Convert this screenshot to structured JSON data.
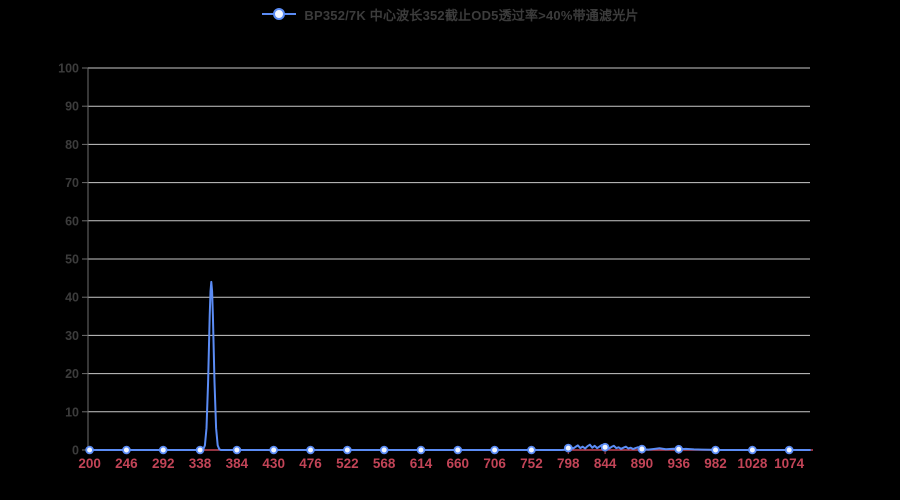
{
  "page": {
    "background": "#000000"
  },
  "legend": {
    "label": "BP352/7K 中心波长352截止OD5透过率>40%带通滤光片",
    "text_color": "#3c3c3c",
    "marker_color": "#5b8cf5",
    "marker_fill": "#f2f6ff"
  },
  "chart_data": {
    "type": "line",
    "title": "",
    "xlabel": "",
    "ylabel": "",
    "legend_position": "top-center",
    "grid": true,
    "xlim": [
      198,
      1100
    ],
    "ylim": [
      0,
      100
    ],
    "x_ticks": [
      200,
      246,
      292,
      338,
      384,
      430,
      476,
      522,
      568,
      614,
      660,
      706,
      752,
      798,
      844,
      890,
      936,
      982,
      1028,
      1074
    ],
    "y_ticks": [
      0,
      10,
      20,
      30,
      40,
      50,
      60,
      70,
      80,
      90,
      100
    ],
    "colors": {
      "grid": "#c9c9c9",
      "y_axis": "#6e6e6e",
      "y_label": "#3c3c3c",
      "x_axis": "#c24457",
      "x_label": "#c24457",
      "series": "#5b8cf5",
      "marker_fill": "#f2f6ff"
    },
    "peak": {
      "center_nm": 352,
      "peak_transmission_pct": 44,
      "bandwidth_nm": 7
    },
    "series": [
      {
        "name": "BP352/7K 中心波长352截止OD5透过率>40%带通滤光片",
        "color": "#5b8cf5",
        "marker": {
          "shape": "circle",
          "fill": "#f2f6ff",
          "stroke": "#5b8cf5"
        },
        "points": [
          [
            200,
            0
          ],
          [
            212,
            0
          ],
          [
            224,
            0
          ],
          [
            236,
            0
          ],
          [
            246,
            0
          ],
          [
            258,
            0
          ],
          [
            270,
            0
          ],
          [
            282,
            0
          ],
          [
            292,
            0
          ],
          [
            304,
            0
          ],
          [
            316,
            0
          ],
          [
            328,
            0
          ],
          [
            338,
            0
          ],
          [
            340,
            0
          ],
          [
            342,
            0.2
          ],
          [
            344,
            1.2
          ],
          [
            346,
            5.7
          ],
          [
            348,
            17.8
          ],
          [
            350,
            35.1
          ],
          [
            351,
            41.5
          ],
          [
            352,
            44
          ],
          [
            353,
            41.5
          ],
          [
            354,
            35.1
          ],
          [
            356,
            17.8
          ],
          [
            358,
            5.7
          ],
          [
            360,
            1.2
          ],
          [
            362,
            0.2
          ],
          [
            364,
            0
          ],
          [
            372,
            0
          ],
          [
            384,
            0
          ],
          [
            400,
            0
          ],
          [
            416,
            0
          ],
          [
            430,
            0
          ],
          [
            446,
            0
          ],
          [
            460,
            0
          ],
          [
            476,
            0
          ],
          [
            492,
            0
          ],
          [
            506,
            0
          ],
          [
            522,
            0
          ],
          [
            538,
            0
          ],
          [
            552,
            0
          ],
          [
            568,
            0
          ],
          [
            584,
            0
          ],
          [
            600,
            0
          ],
          [
            614,
            0
          ],
          [
            630,
            0
          ],
          [
            646,
            0
          ],
          [
            660,
            0
          ],
          [
            676,
            0
          ],
          [
            690,
            0
          ],
          [
            706,
            0
          ],
          [
            722,
            0
          ],
          [
            738,
            0
          ],
          [
            752,
            0
          ],
          [
            766,
            0
          ],
          [
            780,
            0
          ],
          [
            790,
            0
          ],
          [
            795,
            0.1
          ],
          [
            798,
            0.5
          ],
          [
            801,
            0.9
          ],
          [
            804,
            0.4
          ],
          [
            807,
            0.8
          ],
          [
            810,
            1.2
          ],
          [
            813,
            0.5
          ],
          [
            816,
            0.9
          ],
          [
            819,
            0.4
          ],
          [
            822,
            1.0
          ],
          [
            825,
            1.4
          ],
          [
            828,
            0.6
          ],
          [
            831,
            1.1
          ],
          [
            834,
            0.5
          ],
          [
            837,
            0.9
          ],
          [
            840,
            1.3
          ],
          [
            843,
            0.6
          ],
          [
            846,
            1.0
          ],
          [
            849,
            0.4
          ],
          [
            852,
            0.8
          ],
          [
            855,
            1.1
          ],
          [
            858,
            0.5
          ],
          [
            861,
            0.7
          ],
          [
            864,
            0.3
          ],
          [
            867,
            0.6
          ],
          [
            870,
            0.9
          ],
          [
            873,
            0.4
          ],
          [
            876,
            0.6
          ],
          [
            879,
            0.25
          ],
          [
            882,
            0.5
          ],
          [
            885,
            0.7
          ],
          [
            888,
            0.35
          ],
          [
            891,
            0.2
          ],
          [
            894,
            0.15
          ],
          [
            898,
            0.1
          ],
          [
            905,
            0.25
          ],
          [
            912,
            0.45
          ],
          [
            920,
            0.2
          ],
          [
            930,
            0.35
          ],
          [
            936,
            0.2
          ],
          [
            945,
            0.3
          ],
          [
            955,
            0.15
          ],
          [
            965,
            0.1
          ],
          [
            975,
            0.05
          ],
          [
            982,
            0
          ],
          [
            996,
            0
          ],
          [
            1010,
            0
          ],
          [
            1028,
            0
          ],
          [
            1042,
            0
          ],
          [
            1056,
            0
          ],
          [
            1074,
            0
          ],
          [
            1088,
            0
          ],
          [
            1100,
            0
          ]
        ]
      }
    ]
  }
}
